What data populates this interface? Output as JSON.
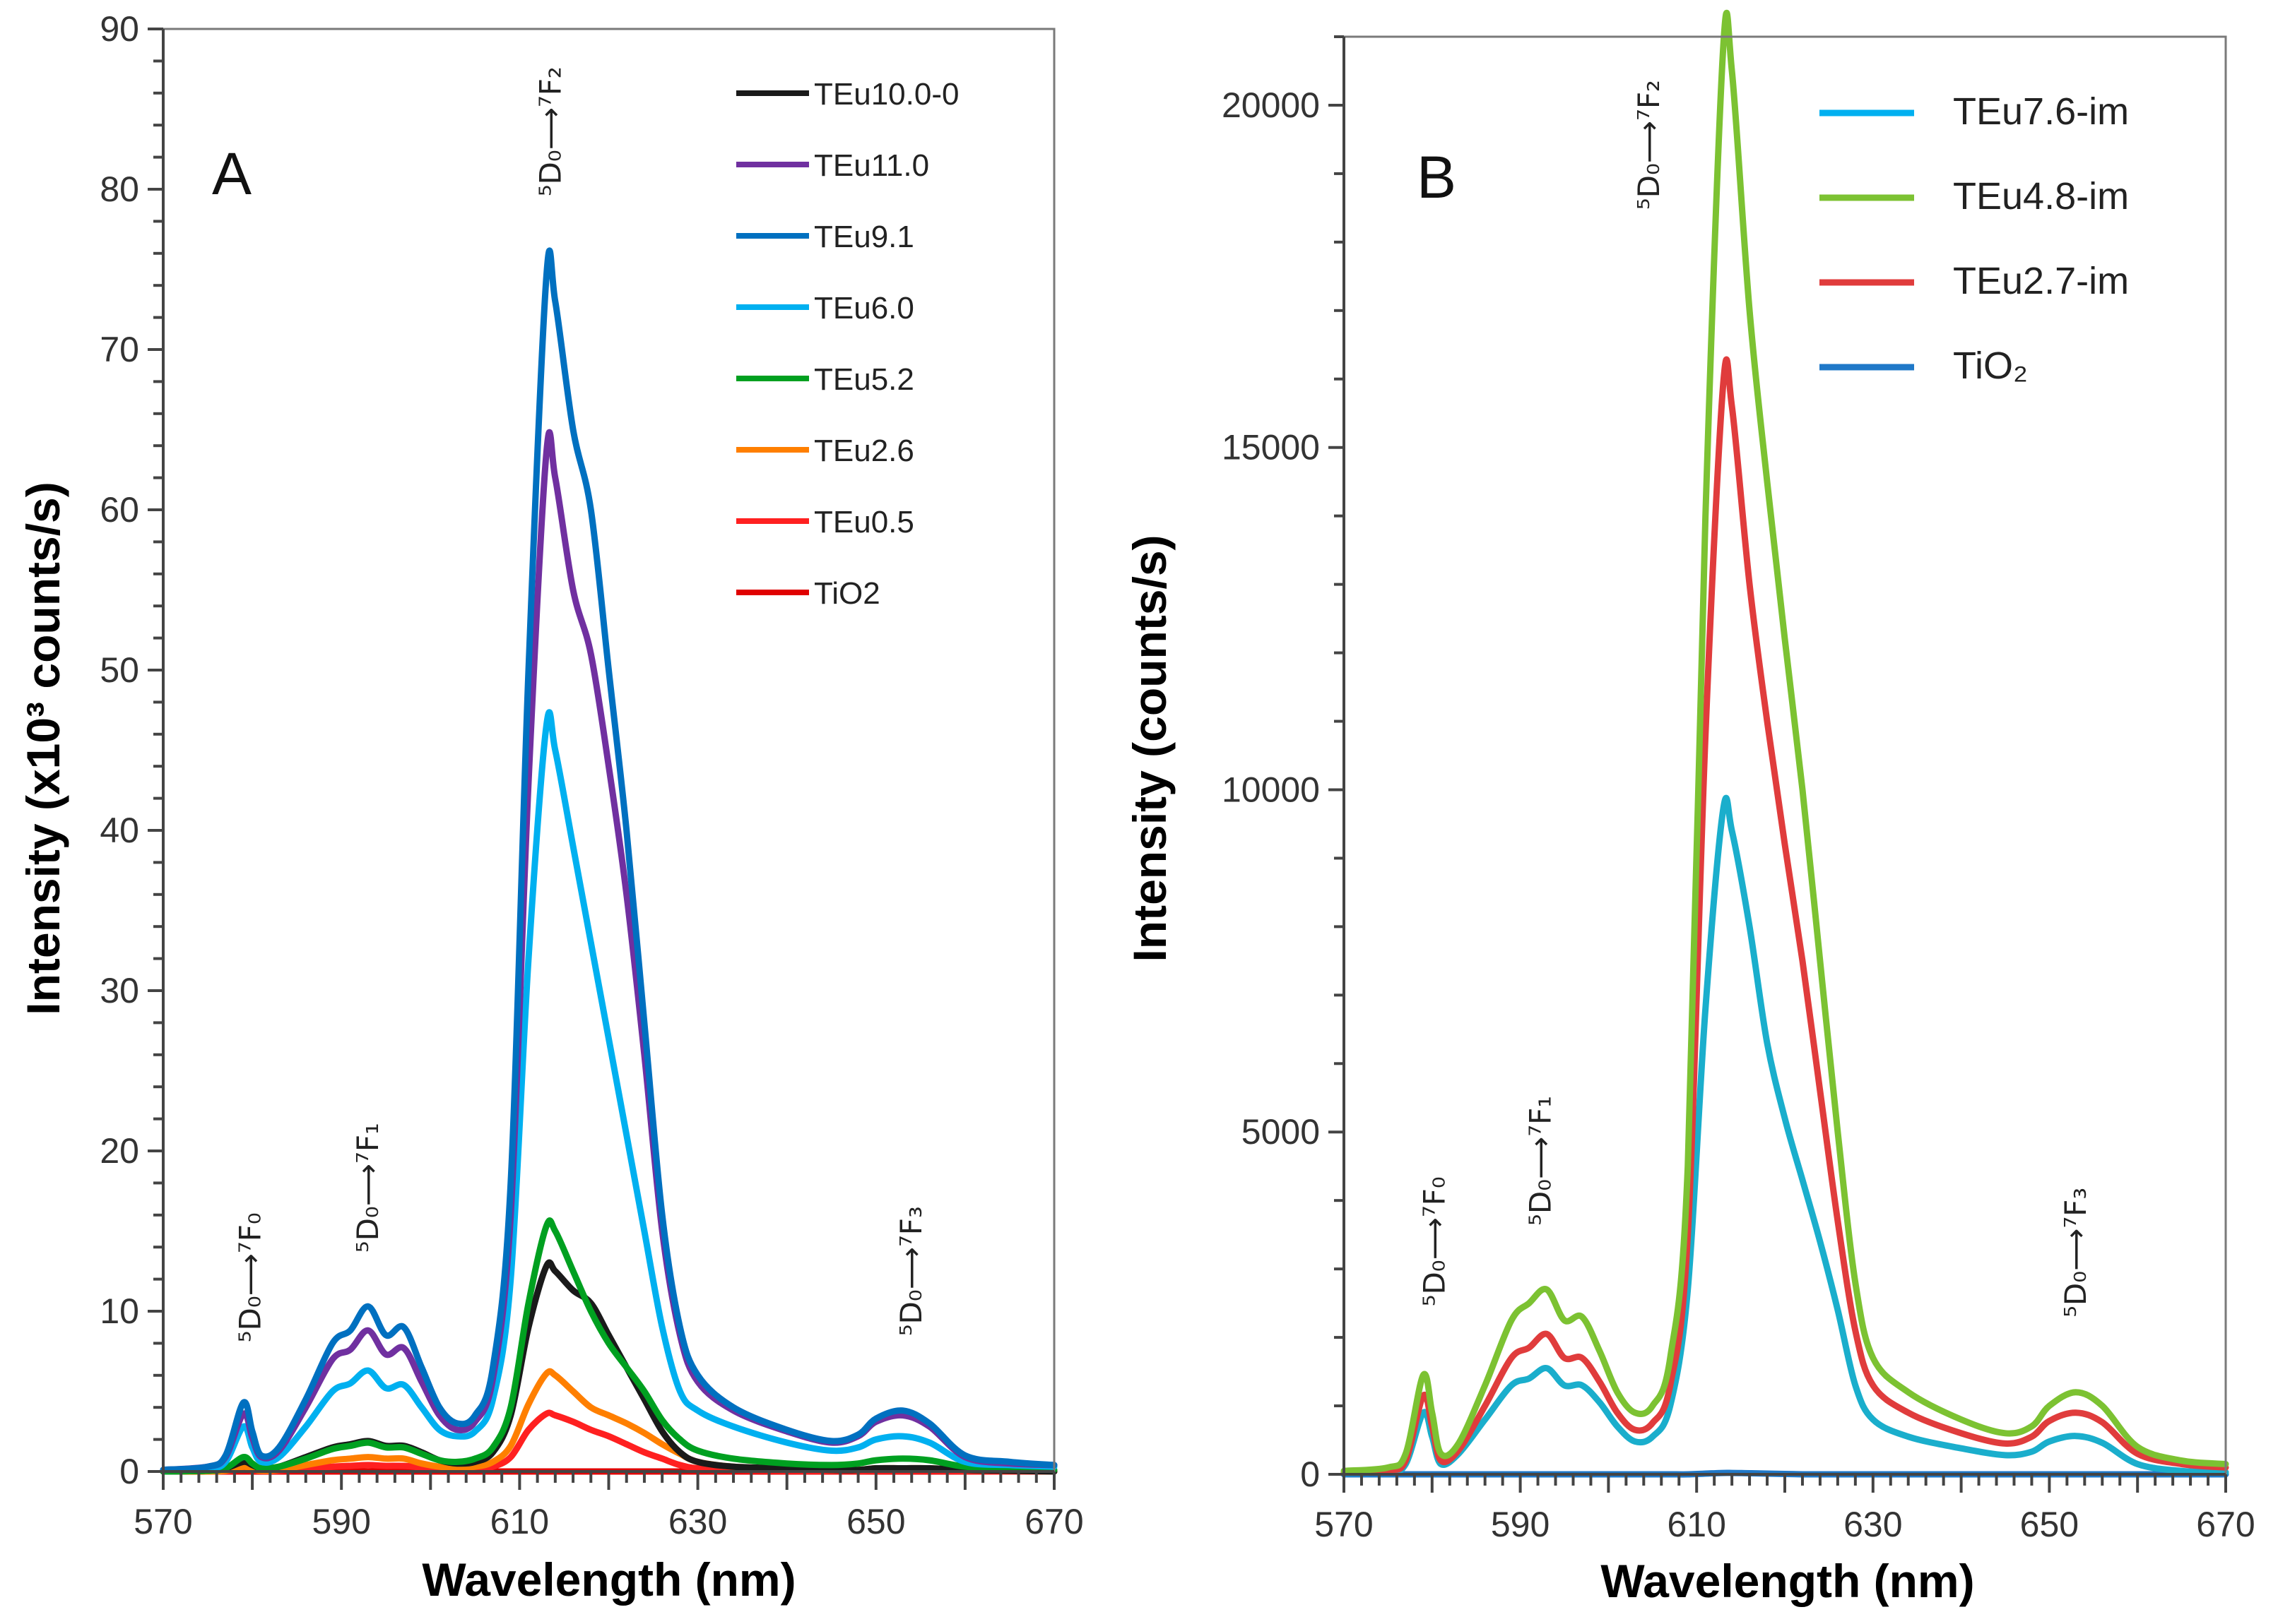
{
  "chart_data": [
    {
      "type": "line",
      "panel_label": "A",
      "xlabel": "Wavelength (nm)",
      "ylabel": "Intensity (x10³ counts/s)",
      "xlim": [
        570,
        670
      ],
      "ylim": [
        0,
        90
      ],
      "xticks": [
        570,
        590,
        610,
        630,
        650,
        670
      ],
      "yticks": [
        0,
        10,
        20,
        30,
        40,
        50,
        60,
        70,
        80,
        90
      ],
      "grid": false,
      "legend_position": "top-right",
      "x": [
        570,
        575,
        577,
        579,
        580,
        581,
        583,
        586,
        589,
        591,
        593,
        595,
        597,
        599,
        601,
        603,
        605,
        607,
        609,
        611,
        613,
        614,
        616,
        618,
        620,
        622,
        624,
        626,
        628,
        630,
        634,
        640,
        645,
        648,
        650,
        653,
        656,
        660,
        665,
        670
      ],
      "series": [
        {
          "name": "TiO2",
          "color": "#e00000",
          "values": [
            0,
            0,
            0,
            0,
            0,
            0,
            0,
            0,
            0,
            0,
            0,
            0,
            0,
            0,
            0,
            0,
            0,
            0,
            0,
            0,
            0,
            0,
            0,
            0,
            0,
            0,
            0,
            0,
            0,
            0,
            0,
            0,
            0,
            0,
            0,
            0,
            0,
            0,
            0,
            0
          ]
        },
        {
          "name": "TEu0.5",
          "color": "#ff2020",
          "values": [
            0,
            0,
            0.03,
            0.15,
            0.08,
            0.03,
            0.05,
            0.2,
            0.3,
            0.35,
            0.4,
            0.35,
            0.35,
            0.25,
            0.15,
            0.1,
            0.15,
            0.3,
            0.9,
            2.6,
            3.6,
            3.5,
            3.1,
            2.6,
            2.2,
            1.7,
            1.2,
            0.8,
            0.4,
            0.2,
            0.1,
            0.05,
            0.03,
            0.03,
            0.05,
            0.05,
            0.05,
            0.02,
            0,
            0
          ]
        },
        {
          "name": "TEu2.6",
          "color": "#ff7f00",
          "values": [
            0,
            0,
            0.05,
            0.3,
            0.15,
            0.05,
            0.1,
            0.4,
            0.7,
            0.8,
            0.9,
            0.8,
            0.8,
            0.5,
            0.3,
            0.25,
            0.3,
            0.6,
            1.6,
            4.2,
            6.1,
            6.0,
            5.0,
            4.0,
            3.5,
            3.0,
            2.4,
            1.7,
            1.1,
            0.6,
            0.3,
            0.2,
            0.1,
            0.1,
            0.2,
            0.2,
            0.2,
            0.1,
            0.05,
            0
          ]
        },
        {
          "name": "TEu10.0-0",
          "color": "#1a1a1a",
          "values": [
            0,
            0.05,
            0.2,
            0.6,
            0.4,
            0.2,
            0.3,
            0.9,
            1.5,
            1.7,
            1.9,
            1.6,
            1.6,
            1.2,
            0.7,
            0.5,
            0.6,
            1.2,
            3.5,
            9,
            12.8,
            12.5,
            11.3,
            10.5,
            8.5,
            6.5,
            4.5,
            2.5,
            1.2,
            0.6,
            0.3,
            0.2,
            0.1,
            0.1,
            0.2,
            0.2,
            0.2,
            0.1,
            0.05,
            0
          ]
        },
        {
          "name": "TEu5.2",
          "color": "#00a020",
          "values": [
            0,
            0.05,
            0.2,
            0.9,
            0.5,
            0.2,
            0.3,
            0.8,
            1.4,
            1.6,
            1.8,
            1.5,
            1.5,
            1.1,
            0.7,
            0.6,
            0.8,
            1.5,
            4,
            10.5,
            15.3,
            15,
            12.5,
            10,
            8,
            6.5,
            5,
            3.2,
            2,
            1.3,
            0.8,
            0.5,
            0.4,
            0.5,
            0.7,
            0.8,
            0.7,
            0.3,
            0.2,
            0.1
          ]
        },
        {
          "name": "TEu6.0",
          "color": "#00b0f0",
          "values": [
            0.1,
            0.2,
            0.6,
            2.8,
            1.5,
            0.6,
            0.9,
            2.8,
            5.0,
            5.5,
            6.3,
            5.2,
            5.4,
            4.0,
            2.6,
            2.2,
            2.5,
            4.5,
            12,
            32,
            46.5,
            45,
            39,
            33,
            27,
            21,
            15,
            9,
            5,
            3.8,
            2.8,
            1.8,
            1.3,
            1.5,
            2.0,
            2.2,
            1.8,
            0.6,
            0.4,
            0.3
          ]
        },
        {
          "name": "TEu11.0",
          "color": "#7030a0",
          "values": [
            0.1,
            0.3,
            0.9,
            3.6,
            2.1,
            0.9,
            1.3,
            4.0,
            7.0,
            7.6,
            8.8,
            7.3,
            7.7,
            5.6,
            3.5,
            2.6,
            3.1,
            5.8,
            16,
            43,
            63.5,
            62,
            55,
            51,
            44,
            36,
            26,
            15,
            8.5,
            5.6,
            3.8,
            2.5,
            1.8,
            2.2,
            3.1,
            3.5,
            2.8,
            0.9,
            0.5,
            0.4
          ]
        },
        {
          "name": "TEu9.1",
          "color": "#0070c0",
          "values": [
            0.1,
            0.3,
            1.0,
            4.3,
            2.5,
            1.0,
            1.5,
            4.5,
            8.0,
            8.8,
            10.3,
            8.5,
            9.0,
            6.5,
            4.0,
            3.0,
            3.5,
            6.5,
            18,
            50,
            74.5,
            73,
            65,
            60,
            50,
            40,
            28,
            16,
            9,
            6,
            4,
            2.6,
            1.9,
            2.3,
            3.3,
            3.8,
            3.0,
            1.0,
            0.6,
            0.4
          ]
        }
      ],
      "legend_order": [
        "TEu10.0-0",
        "TEu11.0",
        "TEu9.1",
        "TEu6.0",
        "TEu5.2",
        "TEu2.6",
        "TEu0.5",
        "TiO2"
      ],
      "annotations": [
        {
          "text": "⁵D₀⟶⁷F₀",
          "x": 579.8,
          "y": 12.1
        },
        {
          "text": "⁵D₀⟶⁷F₁",
          "x": 593,
          "y": 17.7
        },
        {
          "text": "⁵D₀⟶⁷F₂",
          "x": 613.5,
          "y": 83.6
        },
        {
          "text": "⁵D₀⟶⁷F₃",
          "x": 654,
          "y": 12.5
        }
      ]
    },
    {
      "type": "line",
      "panel_label": "B",
      "xlabel": "Wavelength (nm)",
      "ylabel": "Intensity (counts/s)",
      "xlim": [
        570,
        670
      ],
      "ylim": [
        0,
        21000
      ],
      "xticks": [
        570,
        590,
        610,
        630,
        650,
        670
      ],
      "yticks": [
        0,
        5000,
        10000,
        15000,
        20000
      ],
      "grid": false,
      "legend_position": "top-right",
      "x": [
        570,
        575,
        577,
        579,
        580,
        581,
        583,
        586,
        589,
        591,
        593,
        595,
        597,
        599,
        601,
        603,
        605,
        607,
        609,
        611,
        613,
        614,
        616,
        618,
        620,
        622,
        624,
        626,
        628,
        630,
        634,
        640,
        645,
        648,
        650,
        653,
        656,
        660,
        665,
        670
      ],
      "series": [
        {
          "name": "TiO₂",
          "color": "#1f78c8",
          "values": [
            0,
            0,
            0,
            0,
            0,
            0,
            0,
            0,
            0,
            0,
            0,
            0,
            0,
            0,
            0,
            0,
            0,
            0,
            0,
            10,
            20,
            20,
            15,
            10,
            5,
            0,
            0,
            0,
            0,
            0,
            0,
            0,
            0,
            0,
            0,
            0,
            0,
            0,
            0,
            0
          ]
        },
        {
          "name": "TEu7.6-im",
          "color": "#1aaecc",
          "legend_color": "#00b0f0",
          "values": [
            20,
            40,
            150,
            900,
            550,
            150,
            300,
            800,
            1300,
            1400,
            1550,
            1300,
            1300,
            1050,
            700,
            480,
            550,
            1000,
            2700,
            6800,
            9700,
            9400,
            8000,
            6300,
            5200,
            4300,
            3400,
            2400,
            1300,
            800,
            550,
            380,
            280,
            330,
            480,
            560,
            460,
            150,
            50,
            30
          ]
        },
        {
          "name": "TEu2.7-im",
          "color": "#e03c3c",
          "values": [
            30,
            60,
            200,
            1150,
            700,
            200,
            350,
            1000,
            1700,
            1850,
            2050,
            1700,
            1700,
            1350,
            900,
            650,
            750,
            1300,
            3500,
            10800,
            15900,
            15600,
            13000,
            11000,
            9200,
            7500,
            5600,
            3700,
            2100,
            1300,
            900,
            600,
            450,
            550,
            780,
            900,
            760,
            300,
            150,
            100
          ]
        },
        {
          "name": "TEu4.8-im",
          "color": "#7cc232",
          "values": [
            50,
            100,
            300,
            1450,
            900,
            300,
            450,
            1300,
            2250,
            2500,
            2700,
            2250,
            2300,
            1800,
            1200,
            900,
            1000,
            1700,
            4500,
            14000,
            20800,
            20500,
            17000,
            14500,
            12200,
            10000,
            7500,
            5000,
            2800,
            1700,
            1200,
            800,
            600,
            700,
            1000,
            1200,
            1000,
            400,
            200,
            150
          ]
        }
      ],
      "legend_order": [
        "TEu7.6-im",
        "TEu4.8-im",
        "TEu2.7-im",
        "TiO₂"
      ],
      "annotations": [
        {
          "text": "⁵D₀⟶⁷F₀",
          "x": 580.3,
          "y": 3400
        },
        {
          "text": "⁵D₀⟶⁷F₁",
          "x": 592.3,
          "y": 4580
        },
        {
          "text": "⁵D₀⟶⁷F₂",
          "x": 604.6,
          "y": 19420
        },
        {
          "text": "⁵D₀⟶⁷F₃",
          "x": 653,
          "y": 3240
        }
      ]
    }
  ]
}
